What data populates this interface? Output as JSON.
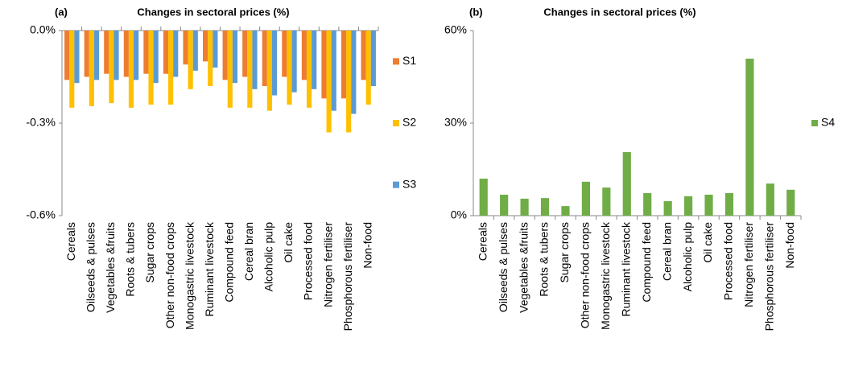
{
  "chart_data": [
    {
      "type": "bar",
      "panel_label": "(a)",
      "title": "Changes in sectoral prices (%)",
      "categories": [
        "Cereals",
        "Oilseeds & pulses",
        "Vegetables &fruits",
        "Roots & tubers",
        "Sugar crops",
        "Other non-food crops",
        "Monogastric livestock",
        "Ruminant livestock",
        "Compound feed",
        "Cereal bran",
        "Alcoholic pulp",
        "Oil cake",
        "Processed food",
        "Nitrogen fertiliser",
        "Phosphorous fertiliser",
        "Non-food"
      ],
      "series": [
        {
          "name": "S1",
          "color": "#ed7d31",
          "values": [
            -0.16,
            -0.15,
            -0.14,
            -0.15,
            -0.14,
            -0.14,
            -0.11,
            -0.1,
            -0.16,
            -0.15,
            -0.18,
            -0.15,
            -0.16,
            -0.22,
            -0.22,
            -0.16
          ]
        },
        {
          "name": "S2",
          "color": "#ffc000",
          "values": [
            -0.25,
            -0.245,
            -0.235,
            -0.25,
            -0.24,
            -0.24,
            -0.19,
            -0.18,
            -0.25,
            -0.25,
            -0.26,
            -0.24,
            -0.25,
            -0.33,
            -0.33,
            -0.24
          ]
        },
        {
          "name": "S3",
          "color": "#5b9bd5",
          "values": [
            -0.17,
            -0.16,
            -0.16,
            -0.16,
            -0.17,
            -0.15,
            -0.13,
            -0.12,
            -0.17,
            -0.19,
            -0.21,
            -0.2,
            -0.19,
            -0.26,
            -0.27,
            -0.18
          ]
        }
      ],
      "ylim": [
        -0.6,
        0
      ],
      "yticks": [
        {
          "value": 0,
          "label": "0.0%"
        },
        {
          "value": -0.3,
          "label": "-0.3%"
        },
        {
          "value": -0.6,
          "label": "-0.6%"
        }
      ],
      "legend": "right"
    },
    {
      "type": "bar",
      "panel_label": "(b)",
      "title": "Changes in sectoral prices (%)",
      "categories": [
        "Cereals",
        "Oilseeds & pulses",
        "Vegetables &fruits",
        "Roots & tubers",
        "Sugar crops",
        "Other non-food crops",
        "Monogastric livestock",
        "Ruminant livestock",
        "Compound feed",
        "Cereal bran",
        "Alcoholic pulp",
        "Oil cake",
        "Processed food",
        "Nitrogen fertiliser",
        "Phosphorous fertiliser",
        "Non-food"
      ],
      "series": [
        {
          "name": "S4",
          "color": "#70ad47",
          "values": [
            12,
            6.8,
            5.5,
            5.7,
            3.1,
            11,
            9.1,
            20.6,
            7.3,
            4.7,
            6.3,
            6.8,
            7.3,
            50.9,
            10.4,
            8.4
          ]
        }
      ],
      "ylim": [
        0,
        60
      ],
      "yticks": [
        {
          "value": 0,
          "label": "0%"
        },
        {
          "value": 30,
          "label": "30%"
        },
        {
          "value": 60,
          "label": "60%"
        }
      ],
      "legend": "right"
    }
  ]
}
